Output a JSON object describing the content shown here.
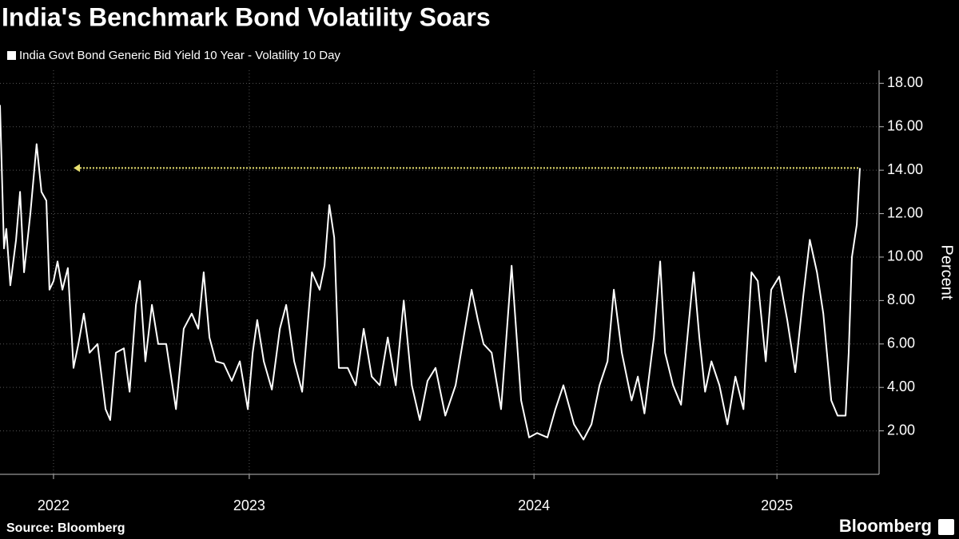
{
  "chart_data": {
    "type": "line",
    "title": "India's Benchmark Bond Volatility Soars",
    "y_label": "Percent",
    "source": "Source: Bloomberg",
    "brand": "Bloomberg",
    "xlim": [
      2022.626,
      2025.698
    ],
    "xticks": [
      {
        "value": 2022.813,
        "label": "2022"
      },
      {
        "value": 2023.497,
        "label": "2023"
      },
      {
        "value": 2024.492,
        "label": "2024"
      },
      {
        "value": 2025.341,
        "label": "2025"
      }
    ],
    "ylim": [
      0,
      18.6
    ],
    "yticks": [
      {
        "value": 2,
        "label": "2.00"
      },
      {
        "value": 4,
        "label": "4.00"
      },
      {
        "value": 6,
        "label": "6.00"
      },
      {
        "value": 8,
        "label": "8.00"
      },
      {
        "value": 10,
        "label": "10.00"
      },
      {
        "value": 12,
        "label": "12.00"
      },
      {
        "value": 14,
        "label": "14.00"
      },
      {
        "value": 16,
        "label": "16.00"
      },
      {
        "value": 18,
        "label": "18.00"
      }
    ],
    "grid": true,
    "x": [
      2022.626,
      2022.64,
      2022.648,
      2022.662,
      2022.682,
      2022.696,
      2022.71,
      2022.732,
      2022.754,
      2022.771,
      2022.788,
      2022.799,
      2022.813,
      2022.827,
      2022.844,
      2022.863,
      2022.883,
      2022.9,
      2022.919,
      2022.939,
      2022.967,
      2022.995,
      2023.011,
      2023.031,
      2023.059,
      2023.079,
      2023.101,
      2023.115,
      2023.134,
      2023.157,
      2023.179,
      2023.207,
      2023.241,
      2023.268,
      2023.296,
      2023.319,
      2023.338,
      2023.358,
      2023.38,
      2023.408,
      2023.436,
      2023.464,
      2023.492,
      2023.509,
      2023.525,
      2023.548,
      2023.576,
      2023.604,
      2023.626,
      2023.654,
      2023.682,
      2023.716,
      2023.743,
      2023.76,
      2023.777,
      2023.794,
      2023.81,
      2023.841,
      2023.869,
      2023.897,
      2023.925,
      2023.953,
      2023.981,
      2024.009,
      2024.037,
      2024.065,
      2024.093,
      2024.12,
      2024.148,
      2024.182,
      2024.218,
      2024.246,
      2024.274,
      2024.296,
      2024.316,
      2024.344,
      2024.377,
      2024.414,
      2024.447,
      2024.475,
      2024.503,
      2024.539,
      2024.567,
      2024.595,
      2024.632,
      2024.665,
      2024.693,
      2024.721,
      2024.749,
      2024.771,
      2024.799,
      2024.833,
      2024.855,
      2024.878,
      2024.911,
      2024.933,
      2024.95,
      2024.978,
      2025.006,
      2025.034,
      2025.05,
      2025.07,
      2025.09,
      2025.112,
      2025.14,
      2025.168,
      2025.196,
      2025.224,
      2025.252,
      2025.274,
      2025.302,
      2025.321,
      2025.349,
      2025.377,
      2025.405,
      2025.433,
      2025.456,
      2025.481,
      2025.503,
      2025.531,
      2025.553,
      2025.581,
      2025.592,
      2025.603,
      2025.62,
      2025.631
    ],
    "series": [
      {
        "name": "India Govt Bond Generic Bid Yield 10 Year - Volatility 10 Day",
        "color": "#ffffff",
        "values": [
          17.0,
          10.4,
          11.3,
          8.7,
          10.8,
          13.0,
          9.3,
          12.0,
          15.2,
          13.0,
          12.6,
          8.5,
          8.9,
          9.8,
          8.5,
          9.5,
          4.9,
          6.0,
          7.4,
          5.6,
          6.0,
          3.0,
          2.5,
          5.6,
          5.8,
          3.8,
          7.8,
          8.9,
          5.2,
          7.8,
          6.0,
          6.0,
          3.0,
          6.7,
          7.4,
          6.7,
          9.3,
          6.3,
          5.2,
          5.1,
          4.3,
          5.2,
          3.0,
          5.6,
          7.1,
          5.2,
          3.9,
          6.7,
          7.8,
          5.2,
          3.8,
          9.3,
          8.5,
          9.6,
          12.4,
          10.9,
          4.9,
          4.9,
          4.1,
          6.7,
          4.5,
          4.1,
          6.3,
          4.1,
          8.0,
          4.1,
          2.5,
          4.3,
          4.9,
          2.7,
          4.1,
          6.3,
          8.5,
          7.1,
          6.0,
          5.6,
          3.0,
          9.6,
          3.4,
          1.7,
          1.9,
          1.7,
          3.0,
          4.1,
          2.3,
          1.6,
          2.3,
          4.1,
          5.2,
          8.5,
          5.6,
          3.4,
          4.5,
          2.8,
          6.3,
          9.8,
          5.6,
          4.1,
          3.2,
          7.1,
          9.3,
          6.3,
          3.8,
          5.2,
          4.1,
          2.3,
          4.5,
          3.0,
          9.3,
          8.9,
          5.2,
          8.5,
          9.1,
          7.1,
          4.7,
          8.2,
          10.8,
          9.3,
          7.4,
          3.4,
          2.7,
          2.7,
          5.6,
          10.0,
          11.5,
          14.1
        ]
      }
    ]
  }
}
